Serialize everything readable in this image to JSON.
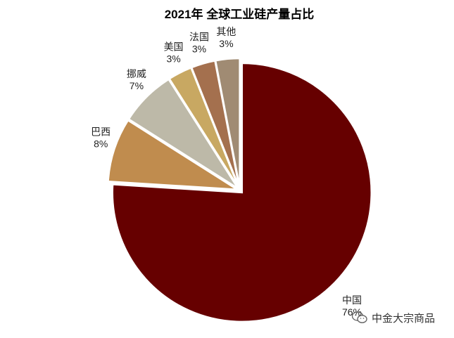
{
  "chart_data": {
    "type": "pie",
    "title": "2021年 全球工业硅产量占比",
    "slices": [
      {
        "label": "中国",
        "value": 76,
        "display": "76%",
        "color": "#660000"
      },
      {
        "label": "巴西",
        "value": 8,
        "display": "8%",
        "color": "#c08c4e"
      },
      {
        "label": "挪威",
        "value": 7,
        "display": "7%",
        "color": "#bdb9a8"
      },
      {
        "label": "美国",
        "value": 3,
        "display": "3%",
        "color": "#c8a862"
      },
      {
        "label": "法国",
        "value": 3,
        "display": "3%",
        "color": "#a4704e"
      },
      {
        "label": "其他",
        "value": 3,
        "display": "3%",
        "color": "#a08b73"
      }
    ],
    "legend": "none",
    "start_angle": "top",
    "direction": "clockwise"
  },
  "watermark": {
    "text": "中金大宗商品",
    "icon": "wechat-icon"
  }
}
